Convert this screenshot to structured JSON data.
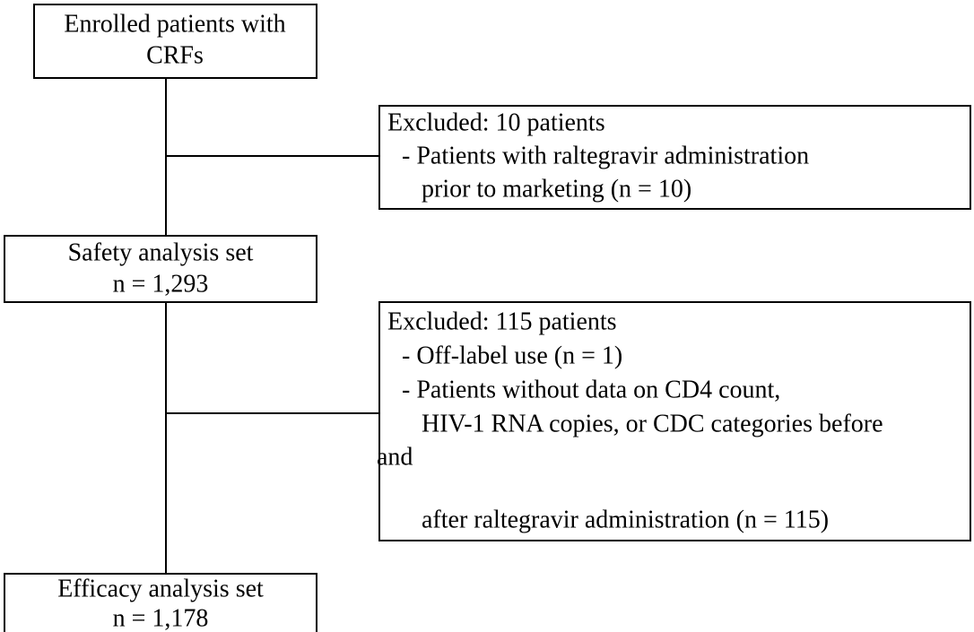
{
  "nodes": [
    {
      "lines": [
        "Enrolled patients with",
        "CRFs"
      ]
    },
    {
      "lines": [
        "Excluded: 10 patients",
        "- Patients with raltegravir administration",
        "prior to marketing (n = 10)"
      ]
    },
    {
      "lines": [
        "Safety analysis set",
        "n = 1,293"
      ]
    },
    {
      "lines": [
        "Excluded: 115 patients",
        "- Off-label use (n = 1)",
        "- Patients without data on CD4 count,",
        "HIV-1 RNA copies, or CDC categories before",
        "and",
        "after raltegravir administration (n = 115)"
      ]
    },
    {
      "lines": [
        "Efficacy analysis set",
        "n = 1,178"
      ]
    }
  ]
}
